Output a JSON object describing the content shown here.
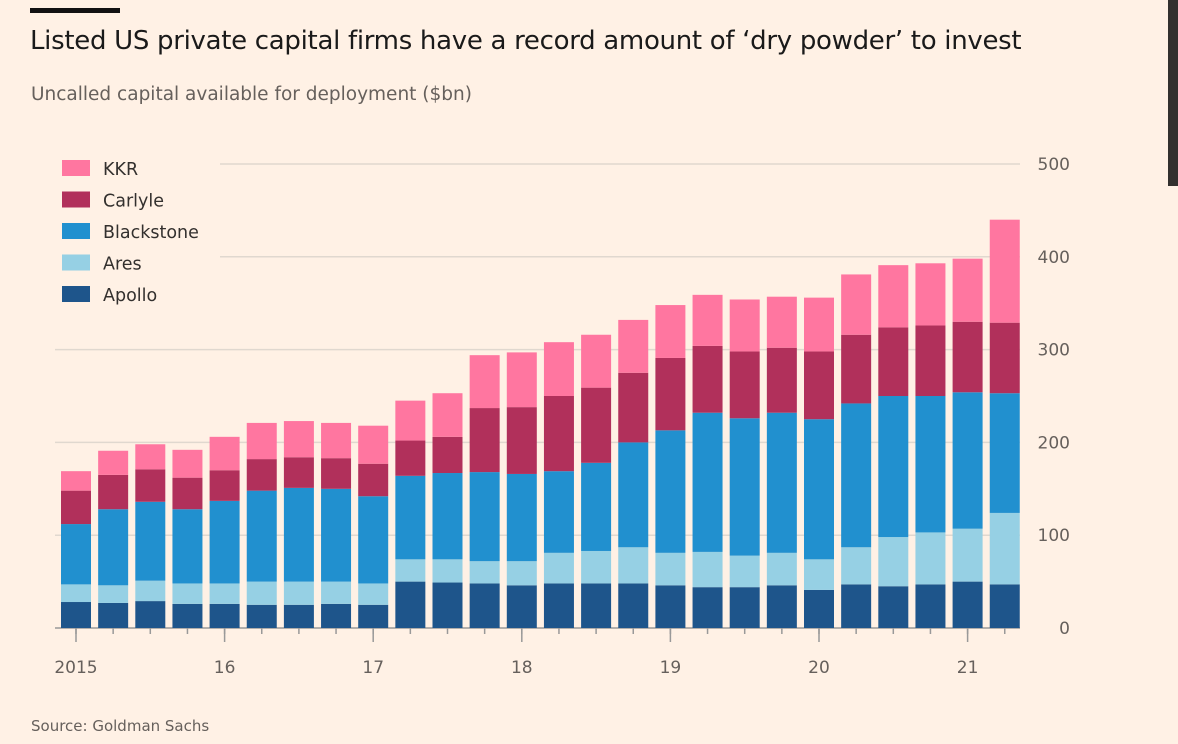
{
  "title": "Listed US private capital firms have a record amount of ‘dry powder’ to invest",
  "subtitle": "Uncalled capital available for deployment ($bn)",
  "source": "Source: Goldman Sachs",
  "chart_data": {
    "type": "bar",
    "stacked": true,
    "title": "Listed US private capital firms have a record amount of ‘dry powder’ to invest",
    "ylabel": "Uncalled capital available for deployment ($bn)",
    "ylim": [
      0,
      500
    ],
    "yticks": [
      0,
      100,
      200,
      300,
      400,
      500
    ],
    "x_tick_labels": [
      {
        "index": 0,
        "label": "2015"
      },
      {
        "index": 4,
        "label": "16"
      },
      {
        "index": 8,
        "label": "17"
      },
      {
        "index": 12,
        "label": "18"
      },
      {
        "index": 16,
        "label": "19"
      },
      {
        "index": 20,
        "label": "20"
      },
      {
        "index": 24,
        "label": "21"
      }
    ],
    "categories": [
      "2015Q1",
      "2015Q2",
      "2015Q3",
      "2015Q4",
      "2016Q1",
      "2016Q2",
      "2016Q3",
      "2016Q4",
      "2017Q1",
      "2017Q2",
      "2017Q3",
      "2017Q4",
      "2018Q1",
      "2018Q2",
      "2018Q3",
      "2018Q4",
      "2019Q1",
      "2019Q2",
      "2019Q3",
      "2019Q4",
      "2020Q1",
      "2020Q2",
      "2020Q3",
      "2020Q4",
      "2021Q1",
      "2021Q2"
    ],
    "legend_position": "top-left",
    "grid": true,
    "series": [
      {
        "name": "Apollo",
        "color": "#1e558b",
        "values": [
          28,
          27,
          29,
          26,
          26,
          25,
          25,
          26,
          25,
          50,
          49,
          48,
          46,
          48,
          48,
          48,
          46,
          44,
          44,
          46,
          41,
          47,
          45,
          47,
          50,
          47
        ]
      },
      {
        "name": "Ares",
        "color": "#96d0e4",
        "values": [
          19,
          19,
          22,
          22,
          22,
          25,
          25,
          24,
          23,
          24,
          25,
          24,
          26,
          33,
          35,
          39,
          35,
          38,
          34,
          35,
          33,
          40,
          53,
          56,
          57,
          77
        ]
      },
      {
        "name": "Blackstone",
        "color": "#2190cf",
        "values": [
          65,
          82,
          85,
          80,
          89,
          98,
          101,
          100,
          94,
          90,
          93,
          96,
          94,
          88,
          95,
          113,
          132,
          150,
          148,
          151,
          151,
          155,
          152,
          147,
          147,
          129
        ]
      },
      {
        "name": "Carlyle",
        "color": "#b1305b",
        "values": [
          36,
          37,
          35,
          34,
          33,
          34,
          33,
          33,
          35,
          38,
          39,
          69,
          72,
          81,
          81,
          75,
          78,
          72,
          72,
          70,
          73,
          74,
          74,
          76,
          76,
          76
        ]
      },
      {
        "name": "KKR",
        "color": "#ff76a0",
        "values": [
          21,
          26,
          27,
          30,
          36,
          39,
          39,
          38,
          41,
          43,
          47,
          57,
          59,
          58,
          57,
          57,
          57,
          55,
          56,
          55,
          58,
          65,
          67,
          67,
          68,
          111
        ]
      }
    ],
    "legend_order": [
      "KKR",
      "Carlyle",
      "Blackstone",
      "Ares",
      "Apollo"
    ]
  }
}
